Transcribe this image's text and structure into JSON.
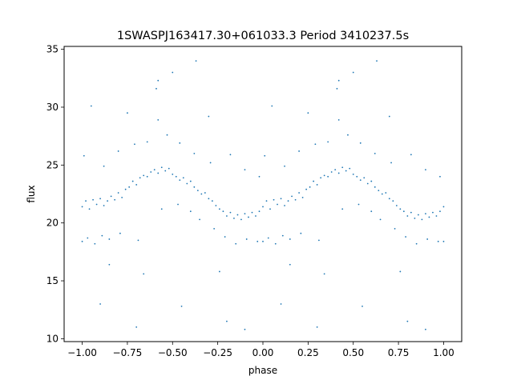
{
  "chart_data": {
    "type": "scatter",
    "title": "1SWASPJ163417.30+061033.3 Period 3410237.5s",
    "xlabel": "phase",
    "ylabel": "flux",
    "xlim": [
      -1.1,
      1.1
    ],
    "ylim": [
      9.75,
      35.25
    ],
    "x_ticks": [
      -1.0,
      -0.75,
      -0.5,
      -0.25,
      0.0,
      0.25,
      0.5,
      0.75,
      1.0
    ],
    "x_tick_labels": [
      "−1.00",
      "−0.75",
      "−0.50",
      "−0.25",
      "0.00",
      "0.25",
      "0.50",
      "0.75",
      "1.00"
    ],
    "y_ticks": [
      10,
      15,
      20,
      25,
      30,
      35
    ],
    "y_tick_labels": [
      "10",
      "15",
      "20",
      "25",
      "30",
      "35"
    ],
    "grid": false,
    "marker_color": "#1f77b4",
    "folded_repeat": true,
    "series": [
      {
        "points": [
          [
            -1.0,
            21.4
          ],
          [
            -0.98,
            21.9
          ],
          [
            -0.96,
            21.2
          ],
          [
            -0.94,
            22.0
          ],
          [
            -0.92,
            21.6
          ],
          [
            -0.9,
            22.1
          ],
          [
            -0.88,
            21.5
          ],
          [
            -0.86,
            21.9
          ],
          [
            -0.84,
            22.3
          ],
          [
            -0.82,
            22.0
          ],
          [
            -0.8,
            22.6
          ],
          [
            -0.78,
            22.2
          ],
          [
            -0.76,
            22.9
          ],
          [
            -0.74,
            23.1
          ],
          [
            -0.72,
            23.6
          ],
          [
            -0.7,
            23.3
          ],
          [
            -0.68,
            23.9
          ],
          [
            -0.66,
            24.1
          ],
          [
            -0.64,
            24.0
          ],
          [
            -0.62,
            24.4
          ],
          [
            -0.6,
            24.6
          ],
          [
            -0.58,
            24.3
          ],
          [
            -0.56,
            24.8
          ],
          [
            -0.54,
            24.5
          ],
          [
            -0.52,
            24.7
          ],
          [
            -0.5,
            24.2
          ],
          [
            -0.48,
            24.0
          ],
          [
            -0.46,
            23.7
          ],
          [
            -0.44,
            23.9
          ],
          [
            -0.42,
            23.4
          ],
          [
            -0.4,
            23.6
          ],
          [
            -0.38,
            23.1
          ],
          [
            -0.36,
            22.8
          ],
          [
            -0.34,
            22.5
          ],
          [
            -0.32,
            22.6
          ],
          [
            -0.3,
            22.1
          ],
          [
            -0.28,
            21.9
          ],
          [
            -0.26,
            21.5
          ],
          [
            -0.24,
            21.2
          ],
          [
            -0.22,
            21.0
          ],
          [
            -0.2,
            20.6
          ],
          [
            -0.18,
            20.9
          ],
          [
            -0.16,
            20.4
          ],
          [
            -0.14,
            20.7
          ],
          [
            -0.12,
            20.3
          ],
          [
            -0.1,
            20.8
          ],
          [
            -0.08,
            20.5
          ],
          [
            -0.06,
            20.9
          ],
          [
            -0.04,
            20.6
          ],
          [
            -0.02,
            21.0
          ],
          [
            0.0,
            21.4
          ],
          [
            0.02,
            21.9
          ],
          [
            0.04,
            21.2
          ],
          [
            0.06,
            22.0
          ],
          [
            0.08,
            21.6
          ],
          [
            0.1,
            22.1
          ],
          [
            0.12,
            21.5
          ],
          [
            0.14,
            21.9
          ],
          [
            0.16,
            22.3
          ],
          [
            0.18,
            22.0
          ],
          [
            0.2,
            22.6
          ],
          [
            0.22,
            22.2
          ],
          [
            0.24,
            22.9
          ],
          [
            0.26,
            23.1
          ],
          [
            0.28,
            23.6
          ],
          [
            0.3,
            23.3
          ],
          [
            0.32,
            23.9
          ],
          [
            0.34,
            24.1
          ],
          [
            0.36,
            24.0
          ],
          [
            0.38,
            24.4
          ],
          [
            0.4,
            24.6
          ],
          [
            0.42,
            24.3
          ],
          [
            0.44,
            24.8
          ],
          [
            0.46,
            24.5
          ],
          [
            0.48,
            24.7
          ],
          [
            0.5,
            24.2
          ],
          [
            0.52,
            24.0
          ],
          [
            0.54,
            23.7
          ],
          [
            0.56,
            23.9
          ],
          [
            0.58,
            23.4
          ],
          [
            0.6,
            23.6
          ],
          [
            0.62,
            23.1
          ],
          [
            0.64,
            22.8
          ],
          [
            0.66,
            22.5
          ],
          [
            0.68,
            22.6
          ],
          [
            0.7,
            22.1
          ],
          [
            0.72,
            21.9
          ],
          [
            0.74,
            21.5
          ],
          [
            0.76,
            21.2
          ],
          [
            0.78,
            21.0
          ],
          [
            0.8,
            20.6
          ],
          [
            0.82,
            20.9
          ],
          [
            0.84,
            20.4
          ],
          [
            0.86,
            20.7
          ],
          [
            0.88,
            20.3
          ],
          [
            0.9,
            20.8
          ],
          [
            0.92,
            20.5
          ],
          [
            0.94,
            20.9
          ],
          [
            0.96,
            20.6
          ],
          [
            0.98,
            21.0
          ],
          [
            1.0,
            21.4
          ],
          [
            -1.0,
            18.4
          ],
          [
            -0.97,
            18.7
          ],
          [
            -0.93,
            18.2
          ],
          [
            -0.89,
            18.9
          ],
          [
            -0.85,
            18.6
          ],
          [
            -0.79,
            19.1
          ],
          [
            -0.69,
            18.5
          ],
          [
            -0.56,
            21.2
          ],
          [
            -0.47,
            21.6
          ],
          [
            -0.4,
            21.0
          ],
          [
            -0.35,
            20.3
          ],
          [
            -0.27,
            19.5
          ],
          [
            -0.21,
            18.8
          ],
          [
            -0.15,
            18.2
          ],
          [
            -0.09,
            18.6
          ],
          [
            -0.03,
            18.4
          ],
          [
            0.0,
            18.4
          ],
          [
            0.03,
            18.7
          ],
          [
            0.07,
            18.2
          ],
          [
            0.11,
            18.9
          ],
          [
            0.15,
            18.6
          ],
          [
            0.21,
            19.1
          ],
          [
            0.31,
            18.5
          ],
          [
            0.44,
            21.2
          ],
          [
            0.53,
            21.6
          ],
          [
            0.6,
            21.0
          ],
          [
            0.65,
            20.3
          ],
          [
            0.73,
            19.5
          ],
          [
            0.79,
            18.8
          ],
          [
            0.85,
            18.2
          ],
          [
            0.91,
            18.6
          ],
          [
            0.97,
            18.4
          ],
          [
            1.0,
            18.4
          ],
          [
            -0.99,
            25.8
          ],
          [
            -0.88,
            24.9
          ],
          [
            -0.8,
            26.2
          ],
          [
            -0.71,
            26.8
          ],
          [
            -0.64,
            27.0
          ],
          [
            -0.58,
            28.9
          ],
          [
            -0.53,
            27.6
          ],
          [
            -0.46,
            26.9
          ],
          [
            -0.38,
            26.0
          ],
          [
            -0.29,
            25.2
          ],
          [
            -0.18,
            25.9
          ],
          [
            -0.1,
            24.6
          ],
          [
            -0.02,
            24.0
          ],
          [
            0.01,
            25.8
          ],
          [
            0.12,
            24.9
          ],
          [
            0.2,
            26.2
          ],
          [
            0.29,
            26.8
          ],
          [
            0.36,
            27.0
          ],
          [
            0.42,
            28.9
          ],
          [
            0.47,
            27.6
          ],
          [
            0.54,
            26.9
          ],
          [
            0.62,
            26.0
          ],
          [
            0.71,
            25.2
          ],
          [
            0.82,
            25.9
          ],
          [
            0.9,
            24.6
          ],
          [
            0.98,
            24.0
          ],
          [
            -0.59,
            31.6
          ],
          [
            -0.58,
            32.3
          ],
          [
            0.41,
            31.6
          ],
          [
            0.42,
            32.3
          ],
          [
            -0.95,
            30.1
          ],
          [
            -0.75,
            29.5
          ],
          [
            -0.3,
            29.2
          ],
          [
            0.05,
            30.1
          ],
          [
            0.25,
            29.5
          ],
          [
            0.7,
            29.2
          ],
          [
            -0.9,
            13.0
          ],
          [
            -0.7,
            11.0
          ],
          [
            -0.45,
            12.8
          ],
          [
            -0.2,
            11.5
          ],
          [
            -0.1,
            10.8
          ],
          [
            0.1,
            13.0
          ],
          [
            0.3,
            11.0
          ],
          [
            0.55,
            12.8
          ],
          [
            0.8,
            11.5
          ],
          [
            0.9,
            10.8
          ],
          [
            -0.66,
            15.6
          ],
          [
            -0.24,
            15.8
          ],
          [
            0.34,
            15.6
          ],
          [
            0.76,
            15.8
          ],
          [
            -0.85,
            16.4
          ],
          [
            0.15,
            16.4
          ],
          [
            -0.5,
            33.0
          ],
          [
            0.5,
            33.0
          ],
          [
            -0.37,
            34.0
          ],
          [
            0.63,
            34.0
          ]
        ]
      }
    ]
  }
}
